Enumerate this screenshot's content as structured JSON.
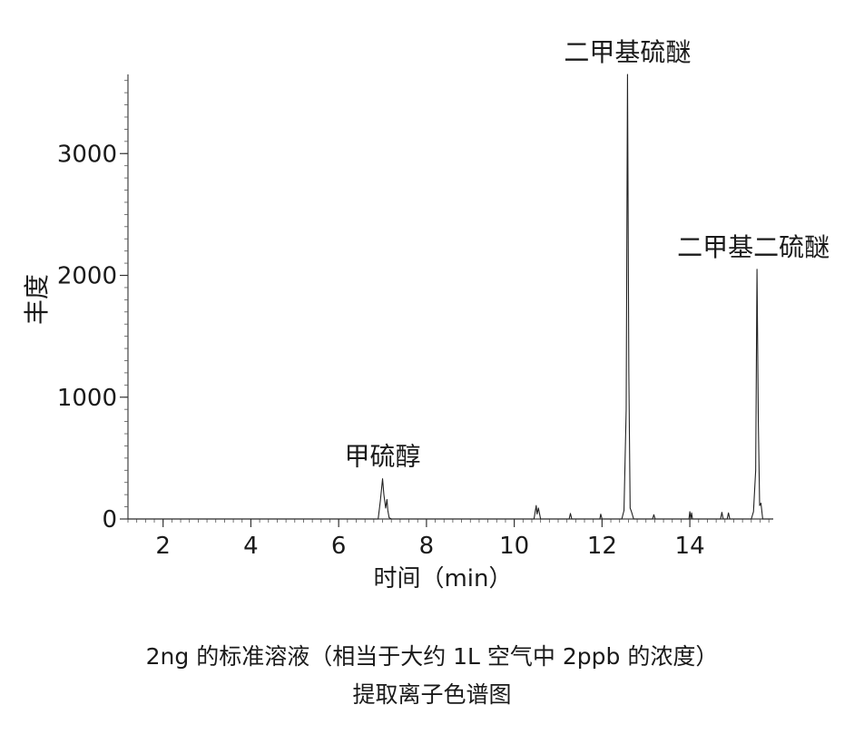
{
  "chart_data": {
    "type": "line",
    "xlabel": "时间（min）",
    "ylabel": "丰度",
    "xlim": [
      1.2,
      15.9
    ],
    "ylim": [
      0,
      3650
    ],
    "xticks": [
      2,
      4,
      6,
      8,
      10,
      12,
      14
    ],
    "yticks": [
      0,
      1000,
      2000,
      3000
    ],
    "grid": false,
    "series": [
      {
        "x": [
          1.2,
          6.9,
          6.95,
          7.0,
          7.03,
          7.07,
          7.1,
          7.12,
          7.15,
          7.2,
          10.45,
          10.5,
          10.52,
          10.55,
          10.6,
          11.25,
          11.28,
          11.31,
          11.95,
          11.97,
          12.0,
          12.45,
          12.5,
          12.55,
          12.58,
          12.61,
          12.64,
          12.67,
          12.72,
          12.77,
          13.15,
          13.18,
          13.21,
          13.98,
          14.0,
          14.02,
          14.04,
          14.06,
          14.7,
          14.73,
          14.76,
          14.85,
          14.88,
          14.91,
          15.4,
          15.45,
          15.5,
          15.53,
          15.56,
          15.59,
          15.62,
          15.66,
          15.9
        ],
        "y": [
          0,
          0,
          150,
          330,
          200,
          90,
          160,
          70,
          10,
          0,
          0,
          110,
          40,
          90,
          0,
          0,
          45,
          0,
          0,
          40,
          0,
          0,
          70,
          900,
          3650,
          1200,
          90,
          60,
          0,
          0,
          0,
          35,
          0,
          0,
          60,
          0,
          50,
          0,
          0,
          55,
          0,
          0,
          50,
          0,
          0,
          60,
          400,
          2050,
          800,
          110,
          130,
          0,
          0
        ]
      }
    ],
    "annotations": [
      {
        "text": "甲硫醇",
        "x": 7.0,
        "y": 330
      },
      {
        "text": "二甲基硫醚",
        "x": 12.58,
        "y": 3650
      },
      {
        "text": "二甲基二硫醚",
        "x": 15.53,
        "y": 2050
      }
    ]
  },
  "caption": {
    "line1": "2ng 的标准溶液（相当于大约 1L 空气中 2ppb 的浓度）",
    "line2": "提取离子色谱图"
  }
}
